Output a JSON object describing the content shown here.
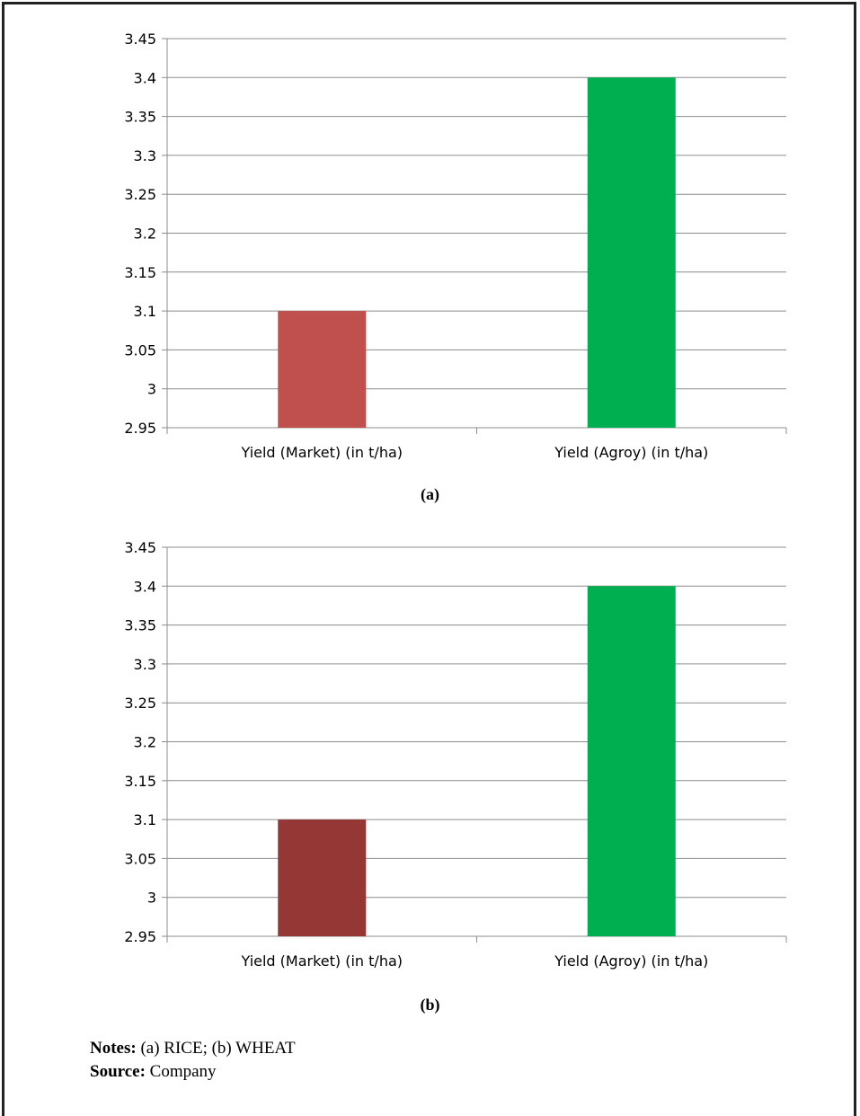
{
  "chart_data": [
    {
      "type": "bar",
      "categories": [
        "Yield (Market) (in t/ha)",
        "Yield (Agroy) (in t/ha)"
      ],
      "values": [
        3.1,
        3.4
      ],
      "colors": [
        "#c0504d",
        "#00b050"
      ],
      "ylim": [
        2.95,
        3.45
      ],
      "yticks": [
        "3.45",
        "3.4",
        "3.35",
        "3.3",
        "3.25",
        "3.2",
        "3.15",
        "3.1",
        "3.05",
        "3",
        "2.95"
      ],
      "grid": true,
      "label": "(a)"
    },
    {
      "type": "bar",
      "categories": [
        "Yield (Market) (in t/ha)",
        "Yield (Agroy) (in t/ha)"
      ],
      "values": [
        3.1,
        3.4
      ],
      "colors": [
        "#953735",
        "#00b050"
      ],
      "ylim": [
        2.95,
        3.45
      ],
      "yticks": [
        "3.45",
        "3.4",
        "3.35",
        "3.3",
        "3.25",
        "3.2",
        "3.15",
        "3.1",
        "3.05",
        "3",
        "2.95"
      ],
      "grid": true,
      "label": "(b)"
    }
  ],
  "notes": {
    "notes_label": "Notes:",
    "notes_text": " (a) RICE; (b) WHEAT",
    "source_label": "Source:",
    "source_text": " Company"
  }
}
